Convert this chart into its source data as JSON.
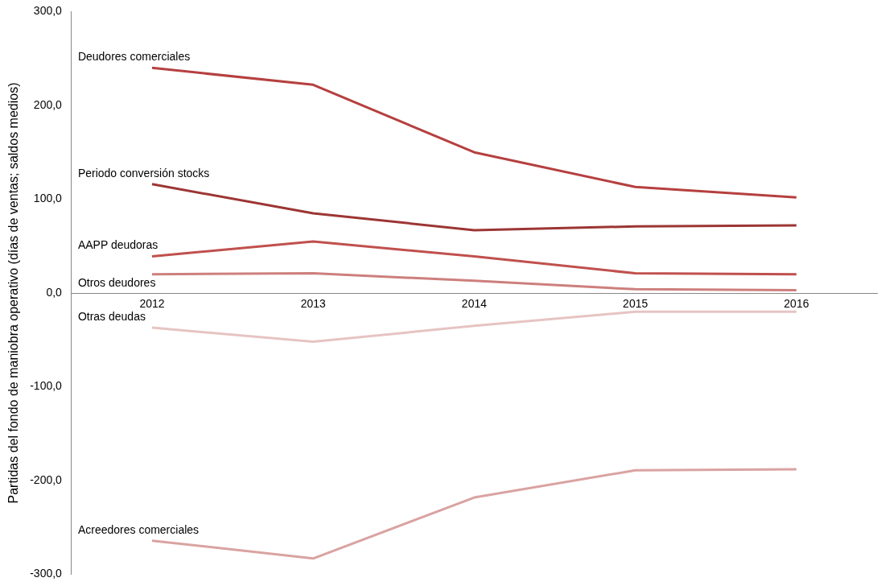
{
  "chart_data": {
    "type": "line",
    "ylabel": "Partidas del fondo de maniobra operativo (días de ventas; saldos medios)",
    "categories": [
      "2012",
      "2013",
      "2014",
      "2015",
      "2016"
    ],
    "series": [
      {
        "name": "Deudores comerciales",
        "color": "#b5403f",
        "values": [
          240,
          222,
          150,
          113,
          102
        ]
      },
      {
        "name": "Periodo conversión stocks",
        "color": "#9c3634",
        "values": [
          116,
          85,
          67,
          71,
          72
        ]
      },
      {
        "name": "AAPP deudoras",
        "color": "#c0504d",
        "values": [
          39,
          55,
          39,
          21,
          20
        ]
      },
      {
        "name": "Otros deudores",
        "color": "#cd7f7d",
        "values": [
          20,
          21,
          13,
          4,
          3
        ]
      },
      {
        "name": "Otras deudas",
        "color": "#e6c4c3",
        "values": [
          -37,
          -52,
          -35,
          -20,
          -20
        ]
      },
      {
        "name": "Acreedores comerciales",
        "color": "#d9a3a1",
        "values": [
          -264,
          -283,
          -218,
          -189,
          -188
        ]
      }
    ],
    "ylim": [
      -300,
      300
    ],
    "yticks": [
      {
        "value": -300,
        "label": "-300,0"
      },
      {
        "value": -200,
        "label": "-200,0"
      },
      {
        "value": -100,
        "label": "-100,0"
      },
      {
        "value": 0,
        "label": "0,0"
      },
      {
        "value": 100,
        "label": "100,0"
      },
      {
        "value": 200,
        "label": "200,0"
      },
      {
        "value": 300,
        "label": "300,0"
      }
    ],
    "grid": false,
    "legend": false,
    "marker": "none",
    "line_style": "solid"
  }
}
